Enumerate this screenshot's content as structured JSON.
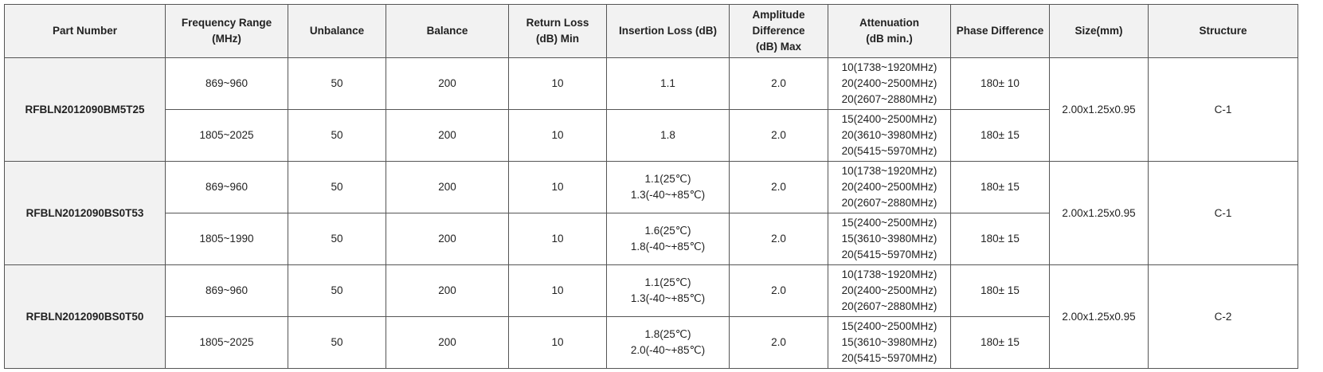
{
  "table": {
    "headers": {
      "part_number": "Part Number",
      "frequency_range": [
        "Frequency Range",
        "(MHz)"
      ],
      "unbalance": "Unbalance",
      "balance": "Balance",
      "return_loss": [
        "Return Loss",
        "(dB) Min"
      ],
      "insertion_loss": "Insertion Loss (dB)",
      "amplitude_difference": [
        "Amplitude",
        "Difference",
        "(dB) Max"
      ],
      "attenuation": [
        "Attenuation",
        "(dB min.)"
      ],
      "phase_difference": "Phase Difference",
      "size": "Size(mm)",
      "structure": "Structure"
    },
    "parts": [
      {
        "part_number": "RFBLN2012090BM5T25",
        "size": "2.00x1.25x0.95",
        "structure": "C-1",
        "rows": [
          {
            "frequency": "869~960",
            "unbalance": "50",
            "balance": "200",
            "return_loss": "10",
            "insertion_loss": [
              "1.1"
            ],
            "amplitude": "2.0",
            "attenuation": [
              "10(1738~1920MHz)",
              "20(2400~2500MHz)",
              "20(2607~2880MHz)"
            ],
            "phase": "180± 10"
          },
          {
            "frequency": "1805~2025",
            "unbalance": "50",
            "balance": "200",
            "return_loss": "10",
            "insertion_loss": [
              "1.8"
            ],
            "amplitude": "2.0",
            "attenuation": [
              "15(2400~2500MHz)",
              "20(3610~3980MHz)",
              "20(5415~5970MHz)"
            ],
            "phase": "180± 15"
          }
        ]
      },
      {
        "part_number": "RFBLN2012090BS0T53",
        "size": "2.00x1.25x0.95",
        "structure": "C-1",
        "rows": [
          {
            "frequency": "869~960",
            "unbalance": "50",
            "balance": "200",
            "return_loss": "10",
            "insertion_loss": [
              "1.1(25℃)",
              "1.3(-40~+85℃)"
            ],
            "amplitude": "2.0",
            "attenuation": [
              "10(1738~1920MHz)",
              "20(2400~2500MHz)",
              "20(2607~2880MHz)"
            ],
            "phase": "180± 15"
          },
          {
            "frequency": "1805~1990",
            "unbalance": "50",
            "balance": "200",
            "return_loss": "10",
            "insertion_loss": [
              "1.6(25℃)",
              "1.8(-40~+85℃)"
            ],
            "amplitude": "2.0",
            "attenuation": [
              "15(2400~2500MHz)",
              "15(3610~3980MHz)",
              "20(5415~5970MHz)"
            ],
            "phase": "180± 15"
          }
        ]
      },
      {
        "part_number": "RFBLN2012090BS0T50",
        "size": "2.00x1.25x0.95",
        "structure": "C-2",
        "rows": [
          {
            "frequency": "869~960",
            "unbalance": "50",
            "balance": "200",
            "return_loss": "10",
            "insertion_loss": [
              "1.1(25℃)",
              "1.3(-40~+85℃)"
            ],
            "amplitude": "2.0",
            "attenuation": [
              "10(1738~1920MHz)",
              "20(2400~2500MHz)",
              "20(2607~2880MHz)"
            ],
            "phase": "180± 15"
          },
          {
            "frequency": "1805~2025",
            "unbalance": "50",
            "balance": "200",
            "return_loss": "10",
            "insertion_loss": [
              "1.8(25℃)",
              "2.0(-40~+85℃)"
            ],
            "amplitude": "2.0",
            "attenuation": [
              "15(2400~2500MHz)",
              "15(3610~3980MHz)",
              "20(5415~5970MHz)"
            ],
            "phase": "180± 15"
          }
        ]
      }
    ]
  }
}
